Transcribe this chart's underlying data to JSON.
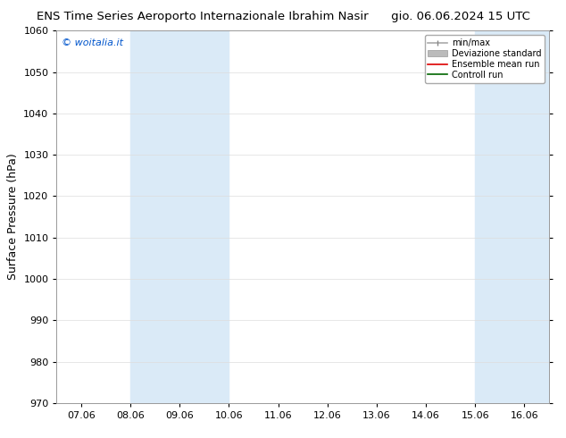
{
  "title_left": "ENS Time Series Aeroporto Internazionale Ibrahim Nasir",
  "title_right": "gio. 06.06.2024 15 UTC",
  "ylabel": "Surface Pressure (hPa)",
  "ylim": [
    970,
    1060
  ],
  "yticks": [
    970,
    980,
    990,
    1000,
    1010,
    1020,
    1030,
    1040,
    1050,
    1060
  ],
  "xlim": [
    0,
    9
  ],
  "xtick_positions": [
    0,
    1,
    2,
    3,
    4,
    5,
    6,
    7,
    8,
    9
  ],
  "xtick_labels": [
    "07.06",
    "08.06",
    "09.06",
    "10.06",
    "11.06",
    "12.06",
    "13.06",
    "14.06",
    "15.06",
    "16.06"
  ],
  "shaded_bands": [
    {
      "start": 1,
      "end": 3
    },
    {
      "start": 8,
      "end": 9
    }
  ],
  "shaded_color": "#daeaf7",
  "watermark_text": "© woitalia.it",
  "watermark_color": "#0055cc",
  "background_color": "#ffffff",
  "grid_color": "#dddddd",
  "title_fontsize": 9.5,
  "tick_fontsize": 8,
  "ylabel_fontsize": 9,
  "figsize": [
    6.34,
    4.9
  ],
  "dpi": 100
}
